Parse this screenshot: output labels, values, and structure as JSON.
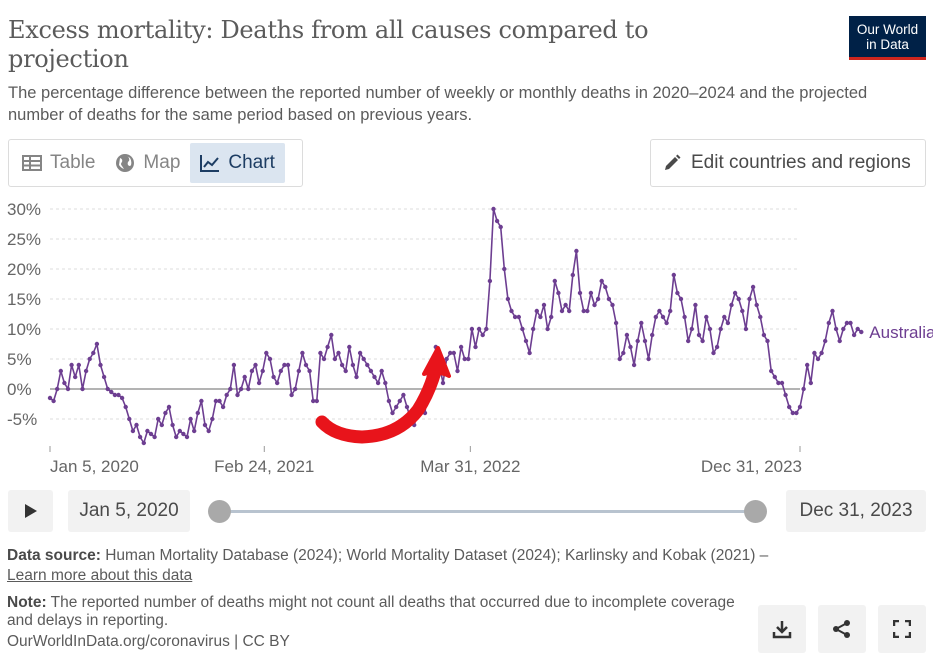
{
  "header": {
    "title": "Excess mortality: Deaths from all causes compared to projection",
    "subtitle": "The percentage difference between the reported number of weekly or monthly deaths in 2020–2024 and the projected number of deaths for the same period based on previous years.",
    "logo_line1": "Our World",
    "logo_line2": "in Data"
  },
  "tabs": [
    {
      "label": "Table",
      "icon": "table-icon",
      "active": false
    },
    {
      "label": "Map",
      "icon": "globe-icon",
      "active": false
    },
    {
      "label": "Chart",
      "icon": "line-chart-icon",
      "active": true
    }
  ],
  "edit_button": {
    "label": "Edit countries and regions",
    "icon": "pencil-icon"
  },
  "timeline": {
    "start_label": "Jan 5, 2020",
    "end_label": "Dec 31, 2023",
    "play_icon": "play-icon"
  },
  "footer": {
    "source_label": "Data source:",
    "source_text": "Human Mortality Database (2024); World Mortality Dataset (2024); Karlinsky and Kobak (2021) –",
    "learn_more": "Learn more about this data",
    "note_label": "Note:",
    "note_text": "The reported number of deaths might not count all deaths that occurred due to incomplete coverage and delays in reporting.",
    "url": "OurWorldInData.org/coronavirus | CC BY",
    "buttons": [
      "download-icon",
      "share-icon",
      "fullscreen-icon"
    ]
  },
  "colors": {
    "series": "#6d3e91",
    "annotation": "#e8141b",
    "logo_bg": "#002147",
    "logo_accent": "#ce261e"
  },
  "chart_data": {
    "type": "line",
    "title": "Excess mortality: Deaths from all causes compared to projection",
    "ylabel": "",
    "ylim": [
      -10,
      30
    ],
    "y_ticks": [
      30,
      25,
      20,
      15,
      10,
      5,
      0,
      -5
    ],
    "y_tick_labels": [
      "30%",
      "25%",
      "20%",
      "15%",
      "10%",
      "5%",
      "0%",
      "-5%"
    ],
    "x_range": [
      "2020-01-05",
      "2023-12-31"
    ],
    "x_ticks": [
      "2020-01-05",
      "2021-02-24",
      "2022-03-31",
      "2023-12-31"
    ],
    "x_tick_labels": [
      "Jan 5, 2020",
      "Feb 24, 2021",
      "Mar 31, 2022",
      "Dec 31, 2023"
    ],
    "grid": "horizontal dashed",
    "series": [
      {
        "name": "Australia",
        "x_start": "2020-01-05",
        "interval_days": 7,
        "values": [
          -1.5,
          -2,
          0,
          3,
          1,
          0,
          4,
          2,
          4,
          0,
          3,
          5,
          6,
          7.5,
          4,
          2,
          0,
          -0.5,
          -1,
          -1,
          -1.5,
          -3,
          -5,
          -7,
          -6,
          -8,
          -9,
          -7,
          -7.5,
          -8,
          -5,
          -6,
          -4,
          -3,
          -6,
          -8,
          -7,
          -7.5,
          -8,
          -5,
          -7,
          -4,
          -2,
          -6,
          -7,
          -5,
          -2,
          -2,
          -3,
          -1,
          0,
          4,
          -1,
          0,
          2,
          0,
          3,
          4,
          1,
          3,
          6,
          5,
          2,
          1,
          3,
          4,
          4,
          -1,
          0,
          3,
          6,
          4,
          3,
          -2,
          -2,
          6,
          5,
          7,
          9,
          5,
          6,
          4,
          3,
          7,
          4,
          2,
          6,
          5,
          4,
          3,
          2,
          1,
          3,
          1,
          -2,
          -4,
          -3,
          -2,
          -1,
          -3,
          -5,
          -6,
          -4,
          -3,
          -4,
          2,
          0,
          7,
          4,
          1,
          5,
          6,
          6,
          3,
          7,
          5,
          5,
          10,
          7,
          10,
          9,
          10,
          18,
          30,
          28,
          27,
          20,
          15,
          13,
          12,
          12,
          10,
          8,
          6,
          10,
          13,
          12,
          14,
          10,
          12,
          18,
          16,
          13,
          14,
          13,
          19,
          23,
          16,
          13,
          13,
          16,
          14,
          15,
          18,
          17,
          15,
          14,
          11,
          5,
          6,
          9,
          7,
          4,
          8,
          11,
          8,
          5,
          9,
          12,
          13,
          12,
          11,
          13,
          19,
          16,
          15,
          12,
          8,
          10,
          14,
          9,
          8,
          12,
          10,
          6,
          7,
          10,
          12,
          11,
          14,
          16,
          15,
          13,
          10,
          15,
          17,
          14,
          12,
          9,
          8,
          3,
          2,
          1,
          1,
          -1,
          -3,
          -4,
          -4,
          -3,
          0,
          4,
          1,
          6,
          5,
          6,
          8,
          11,
          13,
          10,
          8,
          10,
          11,
          11,
          9,
          10,
          9.5
        ]
      }
    ],
    "annotation": "hand-drawn red arrow curving upward toward the early-2022 spike"
  }
}
